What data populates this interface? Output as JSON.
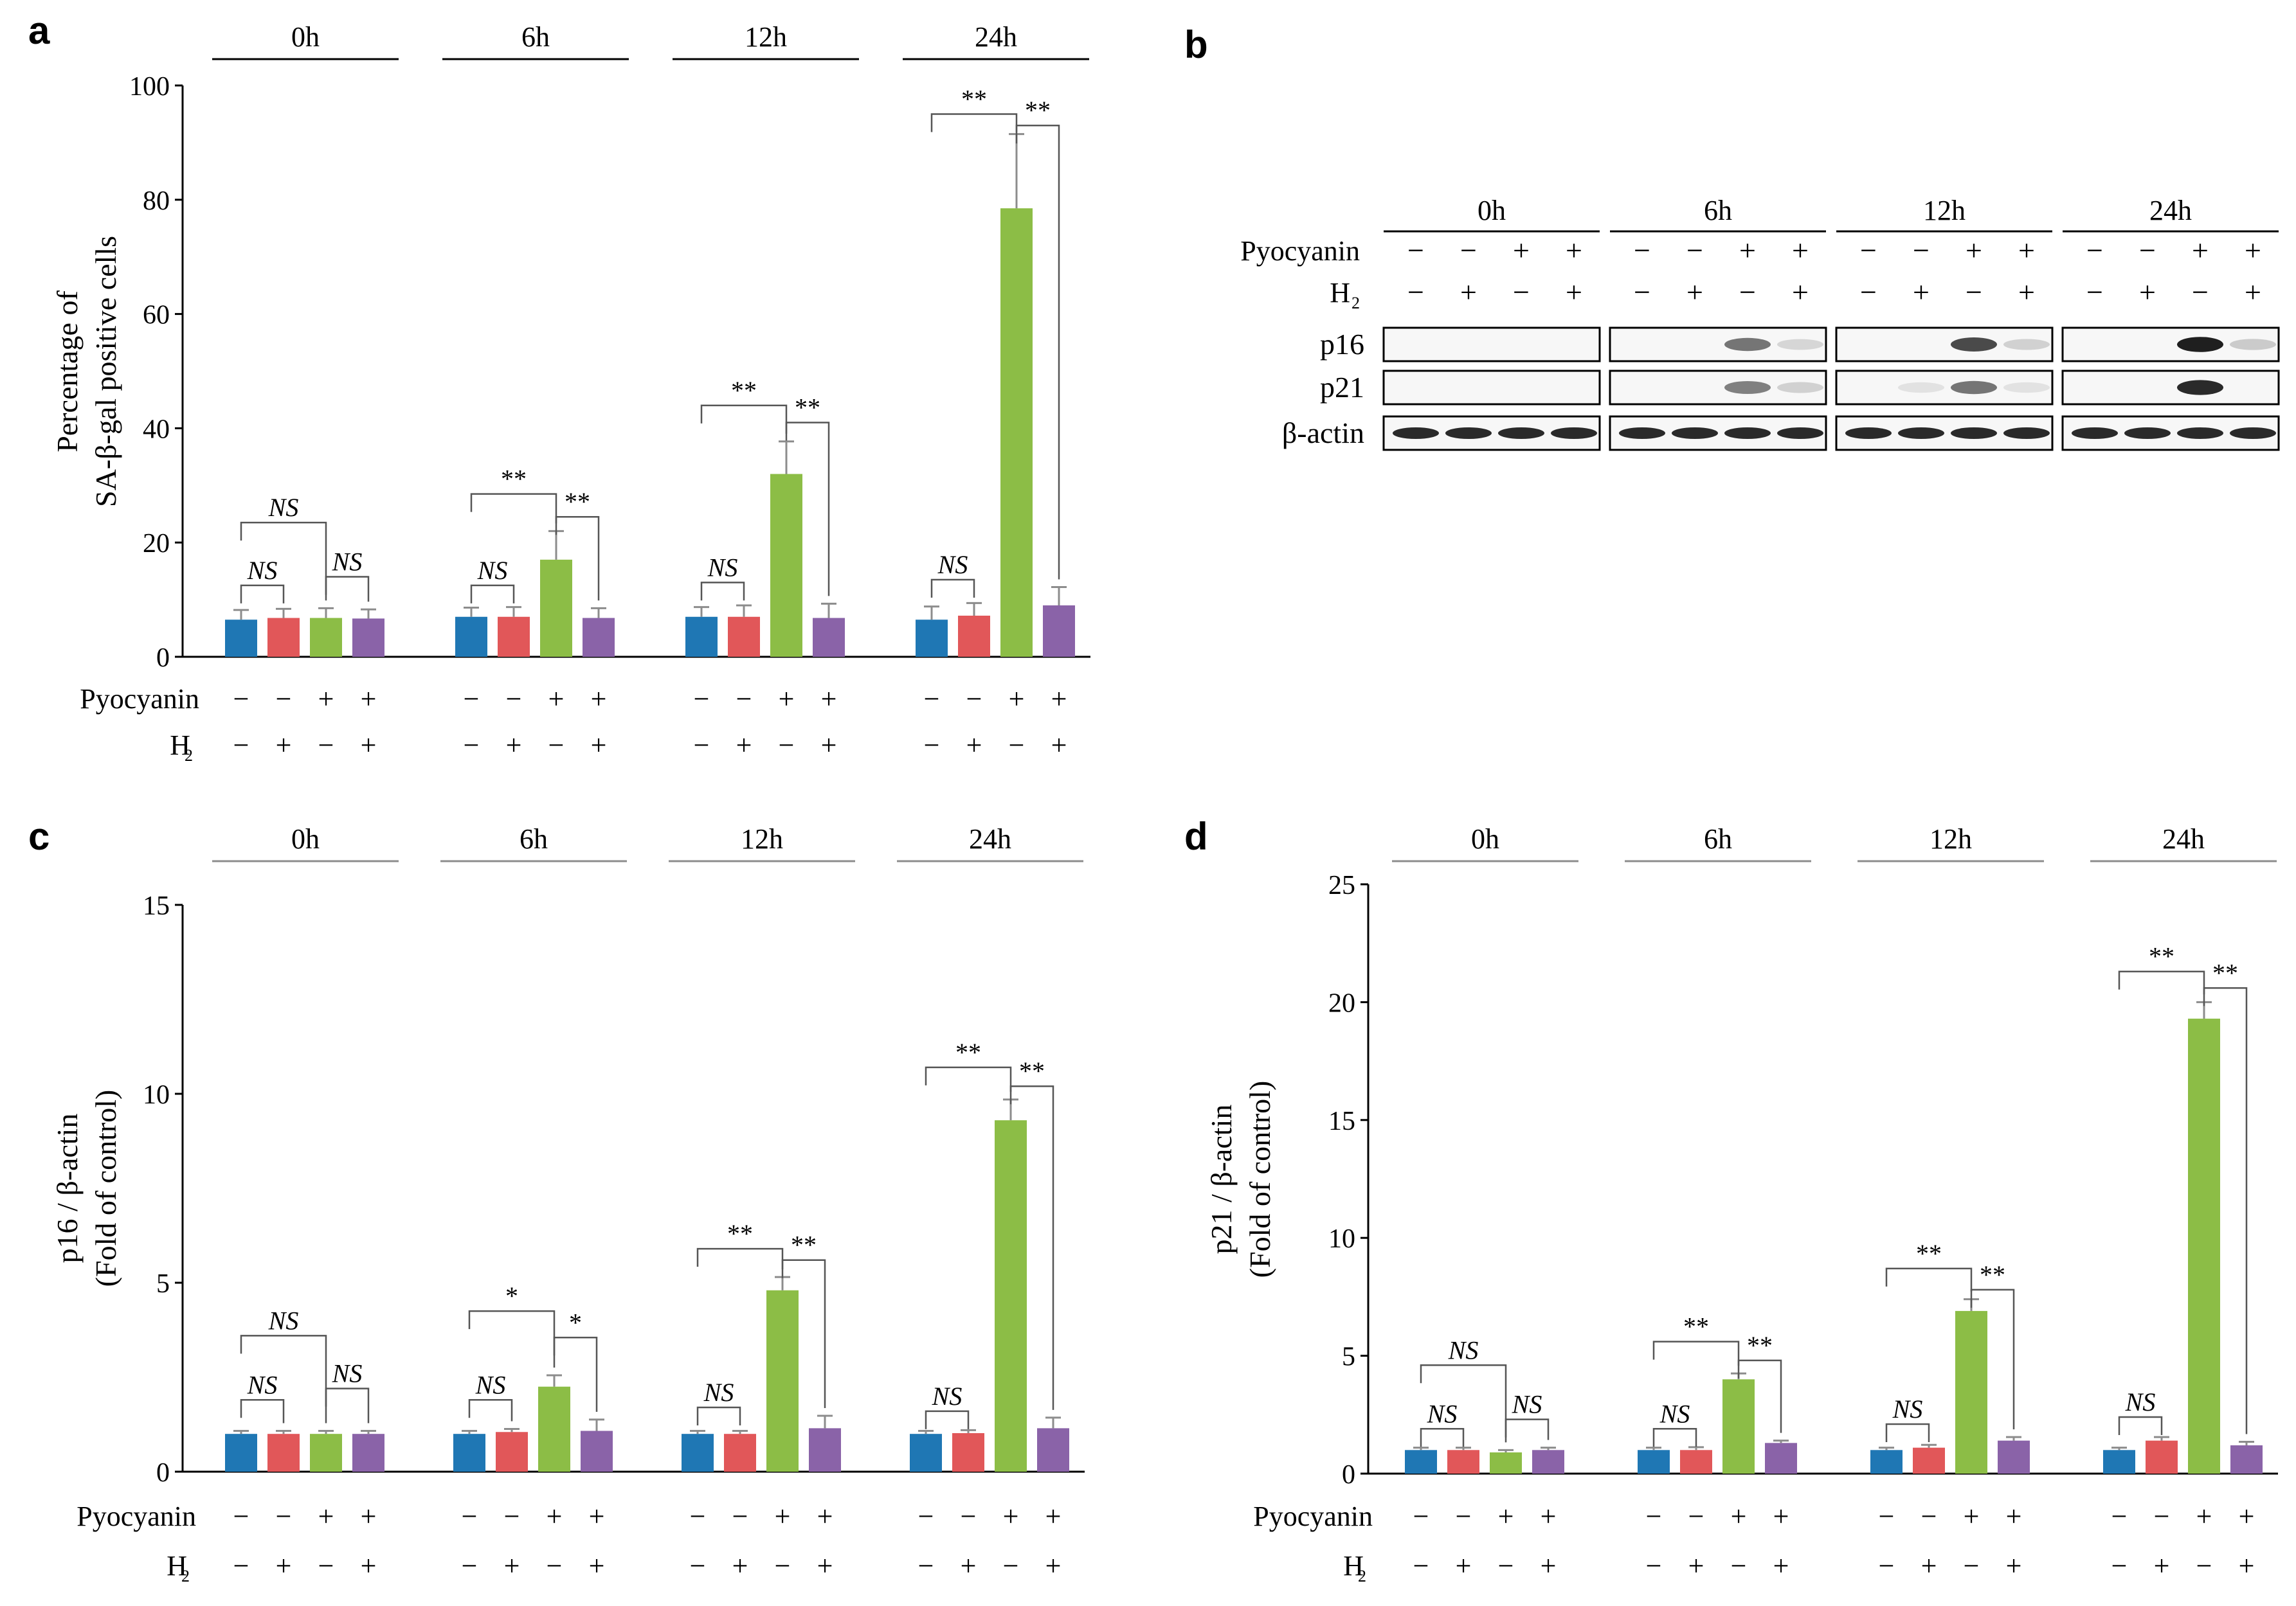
{
  "colors": {
    "pyo_neg_h2_neg": "#1f77b4",
    "pyo_neg_h2_pos": "#e15759",
    "pyo_pos_h2_neg": "#8cbd46",
    "pyo_pos_h2_pos": "#8a63a8",
    "line_gray": "#8c8c8c"
  },
  "groups": [
    "0h",
    "6h",
    "12h",
    "24h"
  ],
  "conditions": {
    "pyocyanin_label": "Pyocyanin",
    "h2_label": "H",
    "h2_sub": "2",
    "pyocyanin_signs": [
      "−",
      "−",
      "+",
      "+"
    ],
    "h2_signs": [
      "−",
      "+",
      "−",
      "+"
    ]
  },
  "chart_data": [
    {
      "panel": "a",
      "type": "bar",
      "title": "",
      "ylabel_lines": [
        "Percentage of",
        "SA-β-gal positive cells"
      ],
      "ylim": [
        0,
        100
      ],
      "yticks": [
        0,
        20,
        40,
        60,
        80,
        100
      ],
      "categories": [
        "0h",
        "6h",
        "12h",
        "24h"
      ],
      "series": [
        {
          "values": [
            6.5,
            7.0,
            7.0,
            6.5
          ],
          "errors": [
            1.7,
            1.6,
            1.7,
            2.3
          ]
        },
        {
          "values": [
            6.8,
            7.0,
            7.0,
            7.2
          ],
          "errors": [
            1.6,
            1.7,
            2.0,
            2.2
          ]
        },
        {
          "values": [
            6.8,
            17.0,
            32.0,
            78.5
          ],
          "errors": [
            1.7,
            5.0,
            5.7,
            13.0
          ]
        },
        {
          "values": [
            6.7,
            6.8,
            6.8,
            9.0
          ],
          "errors": [
            1.6,
            1.7,
            2.5,
            3.2
          ]
        }
      ],
      "annotations": {
        "0h": [
          {
            "from": 0,
            "to": 2,
            "label": "NS",
            "y": 23.5
          },
          {
            "from": 0,
            "to": 1,
            "label": "NS",
            "y": 12.5
          },
          {
            "from": 2,
            "to": 3,
            "label": "NS",
            "y": 14
          }
        ],
        "6h": [
          {
            "from": 0,
            "to": 2,
            "label": "**",
            "y": 28.5
          },
          {
            "from": 2,
            "to": 3,
            "label": "**",
            "y": 24.5
          },
          {
            "from": 0,
            "to": 1,
            "label": "NS",
            "y": 12.5
          }
        ],
        "12h": [
          {
            "from": 0,
            "to": 2,
            "label": "**",
            "y": 44
          },
          {
            "from": 2,
            "to": 3,
            "label": "**",
            "y": 41
          },
          {
            "from": 0,
            "to": 1,
            "label": "NS",
            "y": 13
          }
        ],
        "24h": [
          {
            "from": 0,
            "to": 2,
            "label": "**",
            "y": 95
          },
          {
            "from": 2,
            "to": 3,
            "label": "**",
            "y": 93
          },
          {
            "from": 0,
            "to": 1,
            "label": "NS",
            "y": 13.5
          }
        ]
      }
    },
    {
      "panel": "c",
      "type": "bar",
      "title": "",
      "ylabel_lines": [
        "p16 / β-actin",
        "(Fold of control)"
      ],
      "ylim": [
        0,
        15
      ],
      "yticks": [
        0,
        5,
        10,
        15
      ],
      "categories": [
        "0h",
        "6h",
        "12h",
        "24h"
      ],
      "series": [
        {
          "values": [
            1.0,
            1.0,
            1.0,
            1.0
          ],
          "errors": [
            0.08,
            0.08,
            0.08,
            0.08
          ]
        },
        {
          "values": [
            1.0,
            1.05,
            1.0,
            1.02
          ],
          "errors": [
            0.08,
            0.08,
            0.08,
            0.08
          ]
        },
        {
          "values": [
            1.0,
            2.25,
            4.8,
            9.3
          ],
          "errors": [
            0.08,
            0.3,
            0.35,
            0.55
          ]
        },
        {
          "values": [
            1.0,
            1.08,
            1.15,
            1.15
          ],
          "errors": [
            0.08,
            0.3,
            0.33,
            0.28
          ]
        }
      ],
      "annotations": {
        "0h": [
          {
            "from": 0,
            "to": 2,
            "label": "NS",
            "y": 3.6
          },
          {
            "from": 0,
            "to": 1,
            "label": "NS",
            "y": 1.9
          },
          {
            "from": 2,
            "to": 3,
            "label": "NS",
            "y": 2.2
          }
        ],
        "6h": [
          {
            "from": 0,
            "to": 2,
            "label": "*",
            "y": 4.25
          },
          {
            "from": 2,
            "to": 3,
            "label": "*",
            "y": 3.55
          },
          {
            "from": 0,
            "to": 1,
            "label": "NS",
            "y": 1.9
          }
        ],
        "12h": [
          {
            "from": 0,
            "to": 2,
            "label": "**",
            "y": 5.9
          },
          {
            "from": 2,
            "to": 3,
            "label": "**",
            "y": 5.6
          },
          {
            "from": 0,
            "to": 1,
            "label": "NS",
            "y": 1.7
          }
        ],
        "24h": [
          {
            "from": 0,
            "to": 2,
            "label": "**",
            "y": 10.7
          },
          {
            "from": 2,
            "to": 3,
            "label": "**",
            "y": 10.2
          },
          {
            "from": 0,
            "to": 1,
            "label": "NS",
            "y": 1.6
          }
        ]
      }
    },
    {
      "panel": "d",
      "type": "bar",
      "title": "",
      "ylabel_lines": [
        "p21 / β-actin",
        "(Fold of control)"
      ],
      "ylim": [
        0,
        25
      ],
      "yticks": [
        0,
        5,
        10,
        15,
        20,
        25
      ],
      "categories": [
        "0h",
        "6h",
        "12h",
        "24h"
      ],
      "series": [
        {
          "values": [
            1.0,
            1.0,
            1.0,
            1.0
          ],
          "errors": [
            0.1,
            0.1,
            0.1,
            0.1
          ]
        },
        {
          "values": [
            1.0,
            1.0,
            1.1,
            1.4
          ],
          "errors": [
            0.1,
            0.12,
            0.12,
            0.15
          ]
        },
        {
          "values": [
            0.9,
            4.0,
            6.9,
            19.3
          ],
          "errors": [
            0.1,
            0.25,
            0.5,
            0.7
          ]
        },
        {
          "values": [
            1.0,
            1.3,
            1.4,
            1.2
          ],
          "errors": [
            0.1,
            0.1,
            0.15,
            0.15
          ]
        }
      ],
      "annotations": {
        "0h": [
          {
            "from": 0,
            "to": 2,
            "label": "NS",
            "y": 4.6
          },
          {
            "from": 0,
            "to": 1,
            "label": "NS",
            "y": 1.9
          },
          {
            "from": 2,
            "to": 3,
            "label": "NS",
            "y": 2.3
          }
        ],
        "6h": [
          {
            "from": 0,
            "to": 2,
            "label": "**",
            "y": 5.6
          },
          {
            "from": 2,
            "to": 3,
            "label": "**",
            "y": 4.8
          },
          {
            "from": 0,
            "to": 1,
            "label": "NS",
            "y": 1.9
          }
        ],
        "12h": [
          {
            "from": 0,
            "to": 2,
            "label": "**",
            "y": 8.7
          },
          {
            "from": 2,
            "to": 3,
            "label": "**",
            "y": 7.8
          },
          {
            "from": 0,
            "to": 1,
            "label": "NS",
            "y": 2.1
          }
        ],
        "24h": [
          {
            "from": 0,
            "to": 2,
            "label": "**",
            "y": 21.3
          },
          {
            "from": 2,
            "to": 3,
            "label": "**",
            "y": 20.6
          },
          {
            "from": 0,
            "to": 1,
            "label": "NS",
            "y": 2.4
          }
        ]
      }
    }
  ],
  "western_blot": {
    "panel": "b",
    "rows": [
      "p16",
      "p21",
      "β-actin"
    ],
    "groups": [
      "0h",
      "6h",
      "12h",
      "24h"
    ],
    "band_intensity": {
      "p16": [
        [
          0.02,
          0.02,
          0.02,
          0.02
        ],
        [
          0.02,
          0.02,
          0.55,
          0.1
        ],
        [
          0.02,
          0.02,
          0.75,
          0.12
        ],
        [
          0.02,
          0.02,
          0.95,
          0.15
        ]
      ],
      "p21": [
        [
          0.02,
          0.02,
          0.02,
          0.02
        ],
        [
          0.02,
          0.02,
          0.5,
          0.12
        ],
        [
          0.02,
          0.04,
          0.55,
          0.04
        ],
        [
          0.02,
          0.02,
          0.9,
          0.03
        ]
      ],
      "β-actin": [
        [
          0.9,
          0.9,
          0.9,
          0.9
        ],
        [
          0.9,
          0.9,
          0.9,
          0.9
        ],
        [
          0.9,
          0.9,
          0.9,
          0.9
        ],
        [
          0.9,
          0.9,
          0.9,
          0.9
        ]
      ]
    }
  },
  "panel_labels": [
    "a",
    "b",
    "c",
    "d"
  ]
}
